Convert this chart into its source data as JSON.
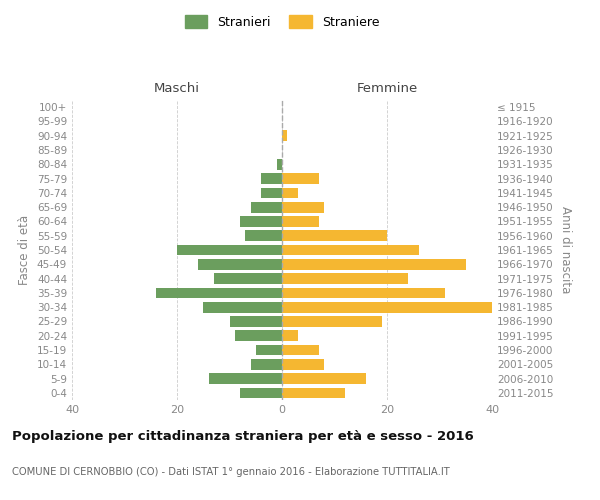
{
  "age_groups": [
    "100+",
    "95-99",
    "90-94",
    "85-89",
    "80-84",
    "75-79",
    "70-74",
    "65-69",
    "60-64",
    "55-59",
    "50-54",
    "45-49",
    "40-44",
    "35-39",
    "30-34",
    "25-29",
    "20-24",
    "15-19",
    "10-14",
    "5-9",
    "0-4"
  ],
  "birth_years": [
    "≤ 1915",
    "1916-1920",
    "1921-1925",
    "1926-1930",
    "1931-1935",
    "1936-1940",
    "1941-1945",
    "1946-1950",
    "1951-1955",
    "1956-1960",
    "1961-1965",
    "1966-1970",
    "1971-1975",
    "1976-1980",
    "1981-1985",
    "1986-1990",
    "1991-1995",
    "1996-2000",
    "2001-2005",
    "2006-2010",
    "2011-2015"
  ],
  "males": [
    0,
    0,
    0,
    0,
    1,
    4,
    4,
    6,
    8,
    7,
    20,
    16,
    13,
    24,
    15,
    10,
    9,
    5,
    6,
    14,
    8
  ],
  "females": [
    0,
    0,
    1,
    0,
    0,
    7,
    3,
    8,
    7,
    20,
    26,
    35,
    24,
    31,
    40,
    19,
    3,
    7,
    8,
    16,
    12
  ],
  "male_color": "#6b9e5e",
  "female_color": "#f5b731",
  "xlim": 40,
  "title": "Popolazione per cittadinanza straniera per età e sesso - 2016",
  "subtitle": "COMUNE DI CERNOBBIO (CO) - Dati ISTAT 1° gennaio 2016 - Elaborazione TUTTITALIA.IT",
  "ylabel_left": "Fasce di età",
  "ylabel_right": "Anni di nascita",
  "header_left": "Maschi",
  "header_right": "Femmine",
  "legend_stranieri": "Stranieri",
  "legend_straniere": "Straniere",
  "bg_color": "#ffffff",
  "grid_color": "#cccccc",
  "label_color": "#888888",
  "title_color": "#111111",
  "subtitle_color": "#666666",
  "dashed_color": "#aaaaaa"
}
